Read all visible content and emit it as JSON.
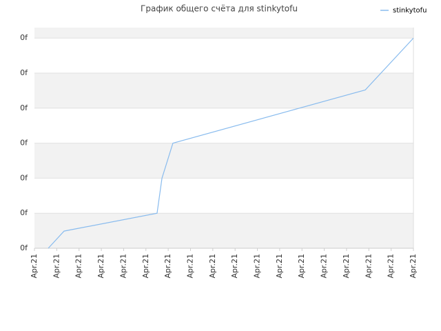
{
  "chart_data": {
    "type": "line",
    "title": "График общего счёта для stinkytofu",
    "x": [
      0.62,
      1.33,
      5.5,
      5.72,
      6.21,
      14.84,
      17
    ],
    "series": [
      {
        "name": "stinkytofu",
        "color": "#88bbee",
        "values": [
          0,
          0.49,
          1.0,
          2.0,
          3.0,
          4.52,
          6.0
        ]
      }
    ],
    "xlim": [
      0,
      17
    ],
    "xticks": [
      {
        "value": 0,
        "label": "Apr.21"
      },
      {
        "value": 1,
        "label": "Apr.21"
      },
      {
        "value": 2,
        "label": "Apr.21"
      },
      {
        "value": 3,
        "label": "Apr.21"
      },
      {
        "value": 4,
        "label": "Apr.21"
      },
      {
        "value": 5,
        "label": "Apr.21"
      },
      {
        "value": 6,
        "label": "Apr.21"
      },
      {
        "value": 7,
        "label": "Apr.21"
      },
      {
        "value": 8,
        "label": "Apr.21"
      },
      {
        "value": 9,
        "label": "Apr.21"
      },
      {
        "value": 10,
        "label": "Apr.21"
      },
      {
        "value": 11,
        "label": "Apr.21"
      },
      {
        "value": 12,
        "label": "Apr.21"
      },
      {
        "value": 13,
        "label": "Apr.21"
      },
      {
        "value": 14,
        "label": "Apr.21"
      },
      {
        "value": 15,
        "label": "Apr.21"
      },
      {
        "value": 16,
        "label": "Apr.21"
      },
      {
        "value": 17,
        "label": "Apr.21"
      }
    ],
    "ylim": [
      0,
      6.3
    ],
    "yticks": [
      {
        "value": 0,
        "label": "0f"
      },
      {
        "value": 1,
        "label": "0f"
      },
      {
        "value": 2,
        "label": "0f"
      },
      {
        "value": 3,
        "label": "0f"
      },
      {
        "value": 4,
        "label": "0f"
      },
      {
        "value": 5,
        "label": "0f"
      },
      {
        "value": 6,
        "label": "0f"
      }
    ],
    "grid": true,
    "legend": "top-right"
  }
}
